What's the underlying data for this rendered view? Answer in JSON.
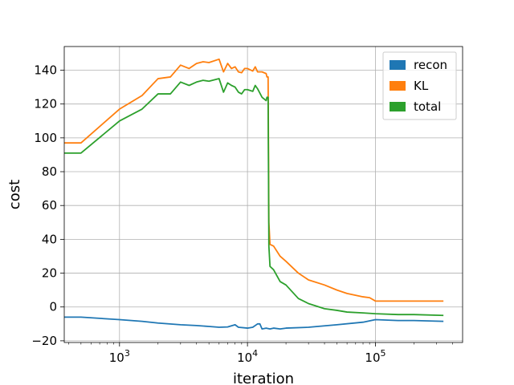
{
  "chart_data": {
    "type": "line",
    "xlabel": "iteration",
    "ylabel": "cost",
    "xscale": "log",
    "xlim": [
      370,
      480000
    ],
    "ylim": [
      -21,
      154
    ],
    "grid": true,
    "legend_position": "top-right",
    "x_ticks": [
      {
        "value": 1000,
        "base": "10",
        "exp": "3"
      },
      {
        "value": 10000,
        "base": "10",
        "exp": "4"
      },
      {
        "value": 100000,
        "base": "10",
        "exp": "5"
      }
    ],
    "y_ticks": [
      -20,
      0,
      20,
      40,
      60,
      80,
      100,
      120,
      140
    ],
    "series": [
      {
        "name": "recon",
        "color": "#1f77b4",
        "points": [
          [
            370,
            -6
          ],
          [
            500,
            -6
          ],
          [
            1000,
            -7.5
          ],
          [
            1500,
            -8.5
          ],
          [
            2000,
            -9.5
          ],
          [
            3000,
            -10.5
          ],
          [
            4000,
            -11
          ],
          [
            5000,
            -11.5
          ],
          [
            6000,
            -12
          ],
          [
            7000,
            -11.8
          ],
          [
            8000,
            -10.5
          ],
          [
            8500,
            -12
          ],
          [
            10000,
            -12.5
          ],
          [
            11000,
            -12
          ],
          [
            12000,
            -10
          ],
          [
            12500,
            -10
          ],
          [
            13000,
            -13
          ],
          [
            14000,
            -12.5
          ],
          [
            15000,
            -13
          ],
          [
            16000,
            -12.5
          ],
          [
            18000,
            -13
          ],
          [
            20000,
            -12.5
          ],
          [
            30000,
            -12
          ],
          [
            50000,
            -10.5
          ],
          [
            80000,
            -9
          ],
          [
            100000,
            -7.5
          ],
          [
            150000,
            -8
          ],
          [
            200000,
            -8
          ],
          [
            340000,
            -8.5
          ]
        ]
      },
      {
        "name": "KL",
        "color": "#ff7f0e",
        "points": [
          [
            370,
            97
          ],
          [
            500,
            97
          ],
          [
            1000,
            117
          ],
          [
            1500,
            125
          ],
          [
            2000,
            135
          ],
          [
            2500,
            136
          ],
          [
            3000,
            143
          ],
          [
            3500,
            141
          ],
          [
            4000,
            144
          ],
          [
            4500,
            145
          ],
          [
            5000,
            144.5
          ],
          [
            6000,
            146.5
          ],
          [
            6500,
            139
          ],
          [
            7000,
            144
          ],
          [
            7500,
            141
          ],
          [
            8000,
            142
          ],
          [
            8500,
            139
          ],
          [
            9000,
            138.5
          ],
          [
            9500,
            141
          ],
          [
            10000,
            141
          ],
          [
            11000,
            139.5
          ],
          [
            11500,
            142
          ],
          [
            12000,
            139
          ],
          [
            13000,
            139
          ],
          [
            14000,
            138
          ],
          [
            14200,
            136
          ],
          [
            14500,
            136
          ],
          [
            14700,
            50
          ],
          [
            15000,
            37
          ],
          [
            16000,
            36
          ],
          [
            18000,
            30
          ],
          [
            20000,
            27
          ],
          [
            25000,
            20
          ],
          [
            30000,
            16
          ],
          [
            40000,
            13
          ],
          [
            50000,
            10
          ],
          [
            60000,
            8
          ],
          [
            80000,
            6
          ],
          [
            90000,
            5.5
          ],
          [
            100000,
            3.5
          ],
          [
            150000,
            3.5
          ],
          [
            200000,
            3.5
          ],
          [
            340000,
            3.5
          ]
        ]
      },
      {
        "name": "total",
        "color": "#2ca02c",
        "points": [
          [
            370,
            91
          ],
          [
            500,
            91
          ],
          [
            1000,
            110
          ],
          [
            1500,
            117
          ],
          [
            2000,
            126
          ],
          [
            2500,
            126
          ],
          [
            3000,
            133
          ],
          [
            3500,
            131
          ],
          [
            4000,
            133
          ],
          [
            4500,
            134
          ],
          [
            5000,
            133.5
          ],
          [
            6000,
            135
          ],
          [
            6500,
            127
          ],
          [
            7000,
            132.5
          ],
          [
            7500,
            131
          ],
          [
            8000,
            130
          ],
          [
            8500,
            127
          ],
          [
            9000,
            126
          ],
          [
            9500,
            128.5
          ],
          [
            10000,
            128.5
          ],
          [
            11000,
            127.5
          ],
          [
            11500,
            131
          ],
          [
            12000,
            129
          ],
          [
            13000,
            124
          ],
          [
            14000,
            122
          ],
          [
            14200,
            124
          ],
          [
            14500,
            124
          ],
          [
            14700,
            36
          ],
          [
            15000,
            24
          ],
          [
            16000,
            22
          ],
          [
            18000,
            15
          ],
          [
            20000,
            13
          ],
          [
            25000,
            5
          ],
          [
            30000,
            2
          ],
          [
            40000,
            -1
          ],
          [
            50000,
            -2
          ],
          [
            60000,
            -3
          ],
          [
            80000,
            -3.5
          ],
          [
            100000,
            -4
          ],
          [
            150000,
            -4.5
          ],
          [
            200000,
            -4.5
          ],
          [
            340000,
            -5
          ]
        ]
      }
    ]
  }
}
